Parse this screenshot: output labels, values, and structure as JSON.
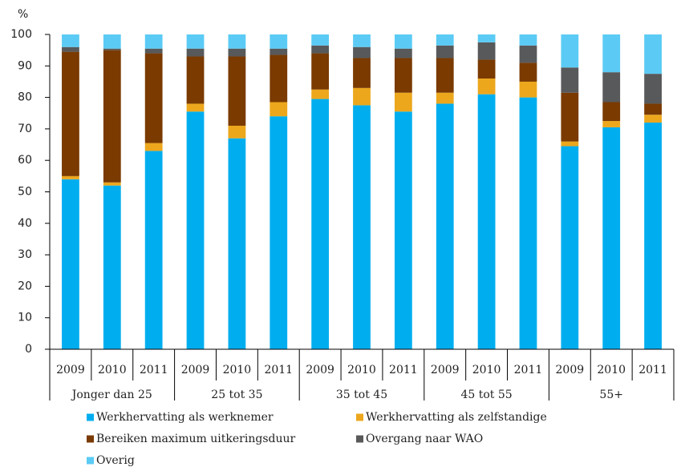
{
  "chart_data": {
    "type": "stacked_bar",
    "y_unit_label": "%",
    "categories": [
      "2009",
      "2010",
      "2011",
      "2009",
      "2010",
      "2011",
      "2009",
      "2010",
      "2011",
      "2009",
      "2010",
      "2011",
      "2009",
      "2010",
      "2011"
    ],
    "groups": [
      "Jonger dan 25",
      "25 tot 35",
      "35 tot 45",
      "45 tot 55",
      "55+"
    ],
    "series": [
      {
        "name": "Werkhervatting als werknemer",
        "color": "#00aeef",
        "values": [
          54,
          52,
          63,
          75.5,
          67,
          74,
          79.5,
          77.5,
          75.5,
          78,
          81,
          80,
          64.5,
          70.5,
          72
        ]
      },
      {
        "name": "Werkhervatting als zelfstandige",
        "color": "#eca71d",
        "values": [
          1,
          1,
          2.5,
          2.5,
          4,
          4.5,
          3,
          5.5,
          6,
          3.5,
          5,
          5,
          1.5,
          2,
          2.5
        ]
      },
      {
        "name": "Bereiken maximum uitkeringsduur",
        "color": "#7a3a00",
        "values": [
          39.5,
          42,
          28.5,
          15,
          22,
          15,
          11.5,
          9.5,
          11,
          11,
          6,
          6,
          15.5,
          6,
          3.5
        ]
      },
      {
        "name": "Overgang naar WAO",
        "color": "#58595b",
        "values": [
          1.5,
          0.5,
          1.5,
          2.5,
          2.5,
          2,
          2.5,
          3.5,
          3,
          4,
          5.5,
          5.5,
          8,
          9.5,
          9.5
        ]
      },
      {
        "name": "Overig",
        "color": "#5bcbf5",
        "values": [
          4,
          4.5,
          4.5,
          4.5,
          4.5,
          4.5,
          3.5,
          4,
          4.5,
          3.5,
          2.5,
          3.5,
          10.5,
          12,
          12.5
        ]
      }
    ],
    "ylim": [
      0,
      100
    ],
    "yticks": [
      0,
      10,
      20,
      30,
      40,
      50,
      60,
      70,
      80,
      90,
      100
    ],
    "grid": false
  }
}
